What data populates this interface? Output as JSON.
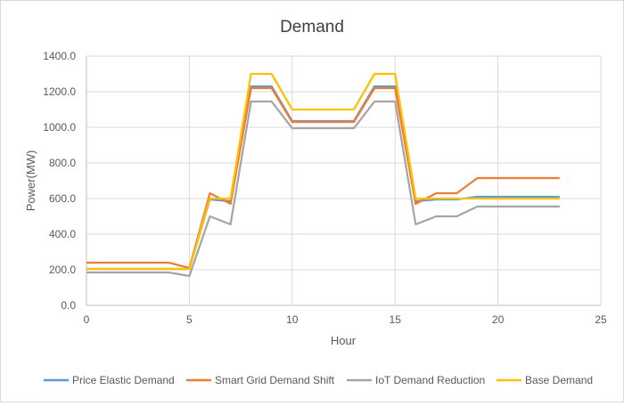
{
  "chart_data": {
    "type": "line",
    "title": "Demand",
    "xlabel": "Hour",
    "ylabel": "Power(MW)",
    "xlim": [
      0,
      25
    ],
    "ylim": [
      0,
      1400
    ],
    "x_ticks": [
      "0",
      "5",
      "10",
      "15",
      "20",
      "25"
    ],
    "y_ticks": [
      "0.0",
      "200.0",
      "400.0",
      "600.0",
      "800.0",
      "1000.0",
      "1200.0",
      "1400.0"
    ],
    "grid": true,
    "legend_position": "bottom",
    "x": [
      0,
      1,
      2,
      3,
      4,
      5,
      6,
      7,
      8,
      9,
      10,
      11,
      12,
      13,
      14,
      15,
      16,
      17,
      18,
      19,
      20,
      21,
      22,
      23
    ],
    "series": [
      {
        "name": "Price Elastic Demand",
        "color": "#5b9bd5",
        "values": [
          205,
          205,
          205,
          205,
          205,
          205,
          595,
          585,
          1230,
          1230,
          1035,
          1035,
          1035,
          1035,
          1230,
          1230,
          585,
          595,
          595,
          610,
          610,
          610,
          610,
          610
        ]
      },
      {
        "name": "Smart Grid Demand Shift",
        "color": "#ed7d31",
        "values": [
          240,
          240,
          240,
          240,
          240,
          210,
          630,
          570,
          1220,
          1220,
          1030,
          1030,
          1030,
          1030,
          1220,
          1220,
          570,
          630,
          630,
          715,
          715,
          715,
          715,
          715
        ]
      },
      {
        "name": "IoT Demand Reduction",
        "color": "#a5a5a5",
        "values": [
          185,
          185,
          185,
          185,
          185,
          165,
          500,
          455,
          1145,
          1145,
          995,
          995,
          995,
          995,
          1145,
          1145,
          455,
          500,
          500,
          555,
          555,
          555,
          555,
          555
        ]
      },
      {
        "name": "Base Demand",
        "color": "#ffc000",
        "values": [
          205,
          205,
          205,
          205,
          205,
          205,
          600,
          600,
          1300,
          1300,
          1100,
          1100,
          1100,
          1100,
          1300,
          1300,
          600,
          600,
          600,
          600,
          600,
          600,
          600,
          600
        ]
      }
    ]
  }
}
